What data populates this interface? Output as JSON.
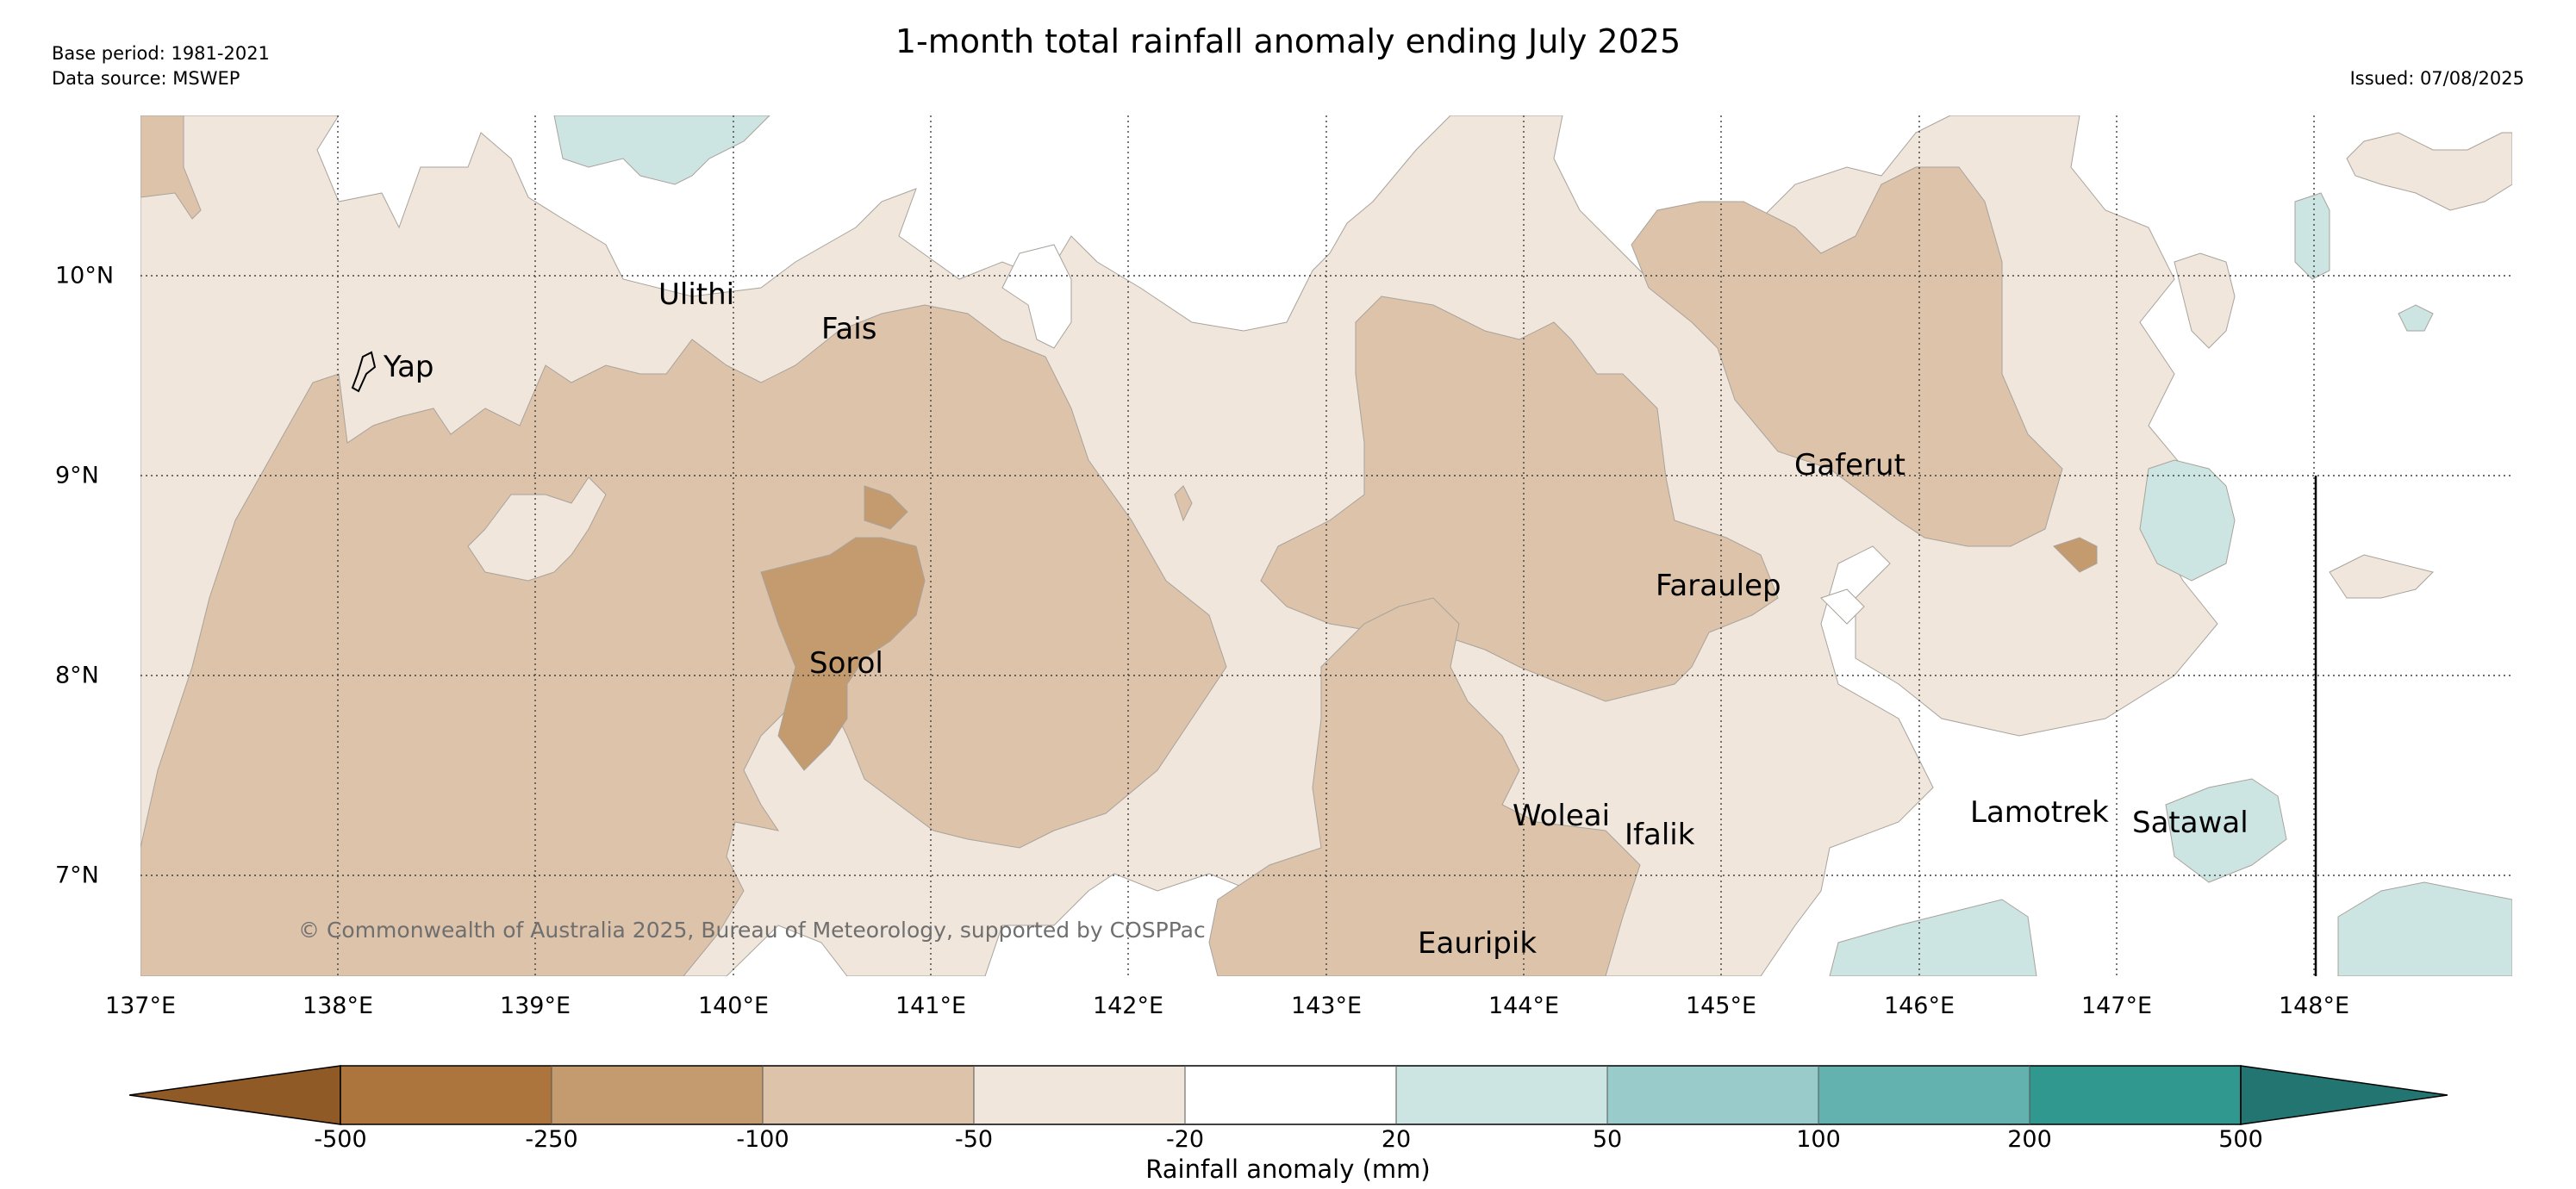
{
  "header": {
    "title": "1-month total rainfall anomaly ending July 2025",
    "base_period": "Base period: 1981-2021",
    "data_source": "Data source: MSWEP",
    "issued": "Issued: 07/08/2025"
  },
  "map": {
    "extent": {
      "lon": [
        137.0,
        149.0
      ],
      "lat": [
        6.5,
        10.8
      ]
    },
    "x_ticks": [
      "137°E",
      "138°E",
      "139°E",
      "140°E",
      "141°E",
      "142°E",
      "143°E",
      "144°E",
      "145°E",
      "146°E",
      "147°E",
      "148°E"
    ],
    "y_ticks": [
      "10°N",
      "9°N",
      "8°N",
      "7°N"
    ],
    "places": [
      {
        "name": "Yap",
        "lon": 138.1,
        "lat": 9.55
      },
      {
        "name": "Ulithi",
        "lon": 139.7,
        "lat": 10.0
      },
      {
        "name": "Fais",
        "lon": 140.5,
        "lat": 9.75
      },
      {
        "name": "Sorol",
        "lon": 140.4,
        "lat": 8.1
      },
      {
        "name": "Gaferut",
        "lon": 145.4,
        "lat": 9.2
      },
      {
        "name": "Faraulep",
        "lon": 144.5,
        "lat": 8.6
      },
      {
        "name": "Woleai",
        "lon": 143.9,
        "lat": 7.35
      },
      {
        "name": "Ifalik",
        "lon": 144.45,
        "lat": 7.25
      },
      {
        "name": "Lamotrek",
        "lon": 146.3,
        "lat": 7.5
      },
      {
        "name": "Satawal",
        "lon": 147.0,
        "lat": 7.35
      },
      {
        "name": "Eauripik",
        "lon": 143.2,
        "lat": 6.7
      }
    ],
    "copyright": "© Commonwealth of Australia 2025, Bureau of Meteorology, supported by COSPPac"
  },
  "colorbar": {
    "label": "Rainfall anomaly (mm)",
    "ticks": [
      "-500",
      "-250",
      "-100",
      "-50",
      "-20",
      "20",
      "50",
      "100",
      "200",
      "500"
    ],
    "colors": {
      "below_min": "#8f5a25",
      "-500_-250": "#ad753e",
      "-250_-100": "#c49a6f",
      "-100_-50": "#dcc3aa",
      "-50_-20": "#f0e6dc",
      "-20_20": "#ffffff",
      "20_50": "#cce5e3",
      "50_100": "#98cbc9",
      "100_200": "#64b2b0",
      "200_500": "#31988f",
      "above_max": "#237572"
    }
  }
}
